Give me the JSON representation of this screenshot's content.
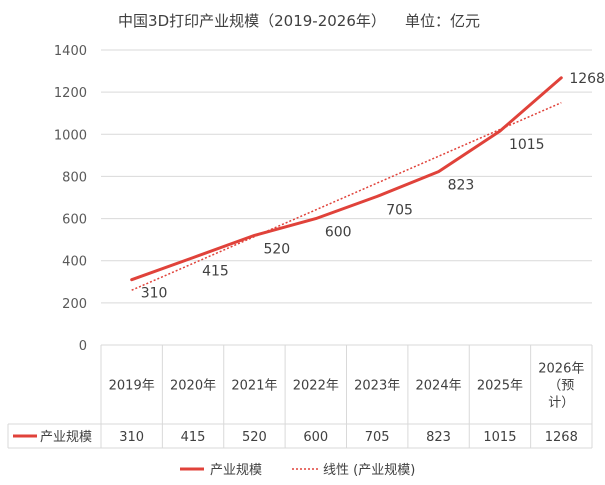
{
  "chart_data": {
    "type": "line",
    "title": "中国3D打印产业规模（2019-2026年）    单位：亿元",
    "categories": [
      "2019年",
      "2020年",
      "2021年",
      "2022年",
      "2023年",
      "2024年",
      "2025年",
      "2026年（预计）"
    ],
    "category_lines": [
      [
        "2019年"
      ],
      [
        "2020年"
      ],
      [
        "2021年"
      ],
      [
        "2022年"
      ],
      [
        "2023年"
      ],
      [
        "2024年"
      ],
      [
        "2025年"
      ],
      [
        "2026年",
        "（预",
        "计）"
      ]
    ],
    "series": [
      {
        "name": "产业规模",
        "values": [
          310,
          415,
          520,
          600,
          705,
          823,
          1015,
          1268
        ],
        "color": "#e0423a"
      }
    ],
    "trendline": {
      "name": "线性 (产业规模)",
      "color": "#e0423a",
      "start": 260,
      "end": 1150
    },
    "y_ticks": [
      "0",
      "200",
      "400",
      "600",
      "800",
      "1000",
      "1200",
      "1400"
    ],
    "ylim": [
      0,
      1400
    ],
    "table_values": [
      "310",
      "415",
      "520",
      "600",
      "705",
      "823",
      "1015",
      "1268"
    ],
    "grid": true,
    "legend_position": "bottom",
    "data_table": true
  }
}
